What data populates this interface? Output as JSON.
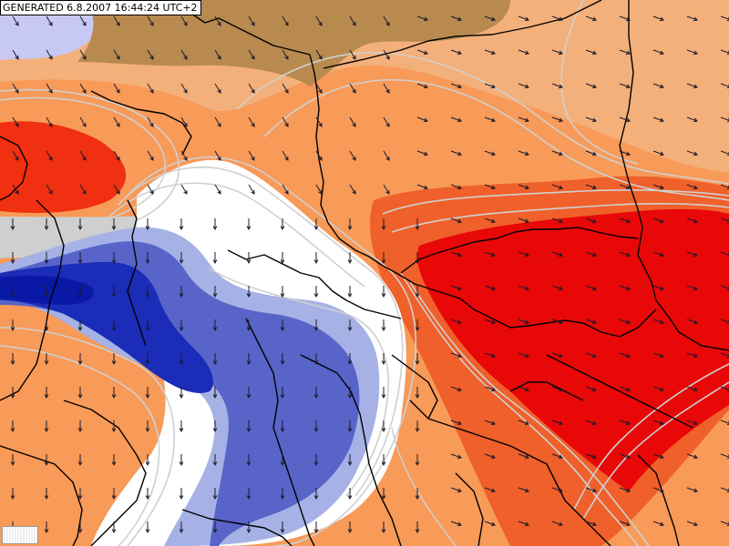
{
  "map": {
    "generated_label": "GENERATED 6.8.2007 16:44:24 UTC+2",
    "field_colors": {
      "base_orange": "#f89a58",
      "light_orange": "#f4b07a",
      "warm_red": "#ee3a1a",
      "strong_red": "#e80808",
      "cream": "#fcd8a0",
      "brown_ridge": "#b88a50",
      "white": "#ffffff",
      "light_blue": "#aab4e6",
      "medium_blue": "#5864c8",
      "deep_blue": "#1426b4",
      "lavender": "#c8c8f4",
      "grey": "#c8c8c8"
    },
    "contour_color": "#c8c8c8",
    "border_color": "#000000",
    "wind_arrow_color": "#1a1a2a",
    "icon": "wind-barb-icon"
  }
}
